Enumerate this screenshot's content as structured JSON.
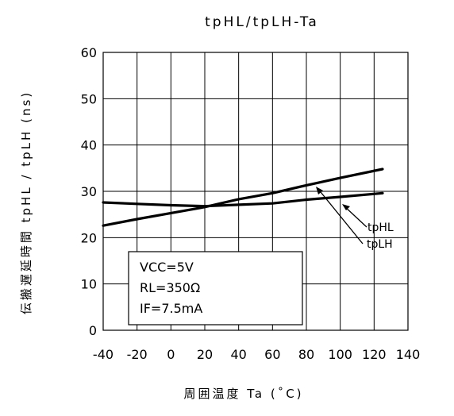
{
  "chart_data": {
    "type": "line",
    "title": "tpHL/tpLH-Ta",
    "xlabel": "周囲温度 Ta (˚C)",
    "ylabel": "伝搬遅延時間 tpHL / tpLH (ns)",
    "xlim": [
      -40,
      140
    ],
    "ylim": [
      0,
      60
    ],
    "xticks": [
      -40,
      -20,
      0,
      20,
      40,
      60,
      80,
      100,
      120,
      140
    ],
    "yticks": [
      0,
      10,
      20,
      30,
      40,
      50,
      60
    ],
    "grid": true,
    "series": [
      {
        "name": "tpHL",
        "x": [
          -40,
          -20,
          0,
          20,
          40,
          60,
          80,
          100,
          125
        ],
        "y": [
          27.6,
          27.3,
          27.0,
          26.8,
          27.1,
          27.4,
          28.2,
          28.8,
          29.6
        ]
      },
      {
        "name": "tpLH",
        "x": [
          -40,
          -20,
          0,
          20,
          40,
          60,
          80,
          100,
          125
        ],
        "y": [
          22.6,
          24.0,
          25.3,
          26.6,
          28.3,
          29.6,
          31.3,
          32.9,
          34.8
        ]
      }
    ],
    "conditions": [
      "VCC=5V",
      "RL=350Ω",
      "IF=7.5mA"
    ]
  }
}
